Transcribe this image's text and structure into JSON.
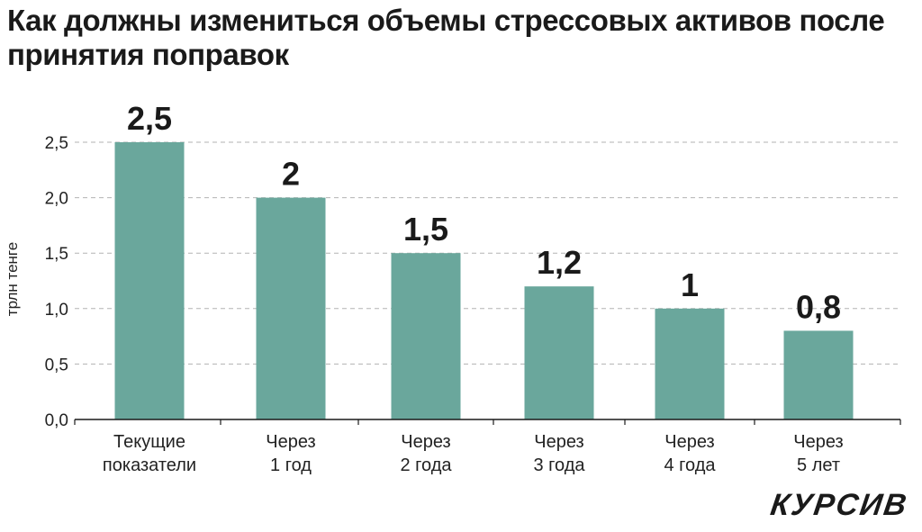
{
  "chart_data": {
    "type": "bar",
    "title": "Как должны измениться объемы стрессовых активов после принятия поправок",
    "ylabel": "трлн тенге",
    "xlabel": "",
    "ylim": [
      0,
      2.5
    ],
    "yticks": [
      {
        "value": 0,
        "label": "0,0"
      },
      {
        "value": 0.5,
        "label": "0,5"
      },
      {
        "value": 1.0,
        "label": "1,0"
      },
      {
        "value": 1.5,
        "label": "1,5"
      },
      {
        "value": 2.0,
        "label": "2,0"
      },
      {
        "value": 2.5,
        "label": "2,5"
      }
    ],
    "grid": true,
    "bar_color": "#6aa79c",
    "categories": [
      {
        "lines": [
          "Текущие",
          "показатели"
        ]
      },
      {
        "lines": [
          "Через",
          "1 год"
        ]
      },
      {
        "lines": [
          "Через",
          "2 года"
        ]
      },
      {
        "lines": [
          "Через",
          "3 года"
        ]
      },
      {
        "lines": [
          "Через",
          "4 года"
        ]
      },
      {
        "lines": [
          "Через",
          "5 лет"
        ]
      }
    ],
    "values": [
      2.5,
      2.0,
      1.5,
      1.2,
      1.0,
      0.8
    ],
    "data_labels": [
      "2,5",
      "2",
      "1,5",
      "1,2",
      "1",
      "0,8"
    ]
  },
  "brand": {
    "logo": "КУРСИВ"
  }
}
